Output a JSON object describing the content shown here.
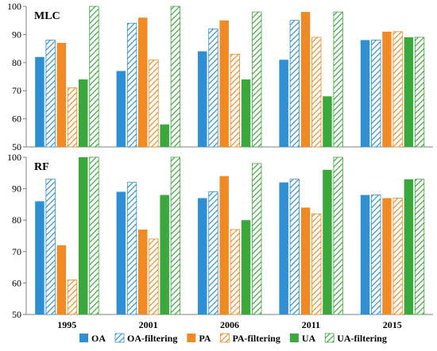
{
  "chart_data": {
    "type": "bar",
    "categories": [
      "1995",
      "2001",
      "2006",
      "2011",
      "2015"
    ],
    "ylim": [
      50,
      100
    ],
    "yticks": [
      50,
      60,
      70,
      80,
      90,
      100
    ],
    "legend_position": "bottom",
    "series_style": [
      {
        "name": "OA",
        "color": "#2e8fd4",
        "pattern": "solid"
      },
      {
        "name": "OA-filtering",
        "color": "#2e8fd4",
        "pattern": "hatch"
      },
      {
        "name": "PA",
        "color": "#f08a24",
        "pattern": "solid"
      },
      {
        "name": "PA-filtering",
        "color": "#f08a24",
        "pattern": "hatch"
      },
      {
        "name": "UA",
        "color": "#3aa83a",
        "pattern": "solid"
      },
      {
        "name": "UA-filtering",
        "color": "#3aa83a",
        "pattern": "hatch"
      }
    ],
    "panels": [
      {
        "title": "MLC",
        "series": [
          {
            "name": "OA",
            "values": [
              82,
              77,
              84,
              81,
              88
            ]
          },
          {
            "name": "OA-filtering",
            "values": [
              88,
              94,
              92,
              95,
              88
            ]
          },
          {
            "name": "PA",
            "values": [
              87,
              96,
              95,
              98,
              91
            ]
          },
          {
            "name": "PA-filtering",
            "values": [
              71,
              81,
              83,
              89,
              91
            ]
          },
          {
            "name": "UA",
            "values": [
              74,
              58,
              74,
              68,
              89
            ]
          },
          {
            "name": "UA-filtering",
            "values": [
              100,
              100,
              98,
              98,
              89
            ]
          }
        ]
      },
      {
        "title": "RF",
        "series": [
          {
            "name": "OA",
            "values": [
              86,
              89,
              87,
              92,
              88
            ]
          },
          {
            "name": "OA-filtering",
            "values": [
              93,
              92,
              89,
              93,
              88
            ]
          },
          {
            "name": "PA",
            "values": [
              72,
              77,
              94,
              84,
              87
            ]
          },
          {
            "name": "PA-filtering",
            "values": [
              61,
              74,
              77,
              82,
              87
            ]
          },
          {
            "name": "UA",
            "values": [
              100,
              88,
              80,
              96,
              93
            ]
          },
          {
            "name": "UA-filtering",
            "values": [
              100,
              100,
              98,
              100,
              93
            ]
          }
        ]
      }
    ]
  }
}
